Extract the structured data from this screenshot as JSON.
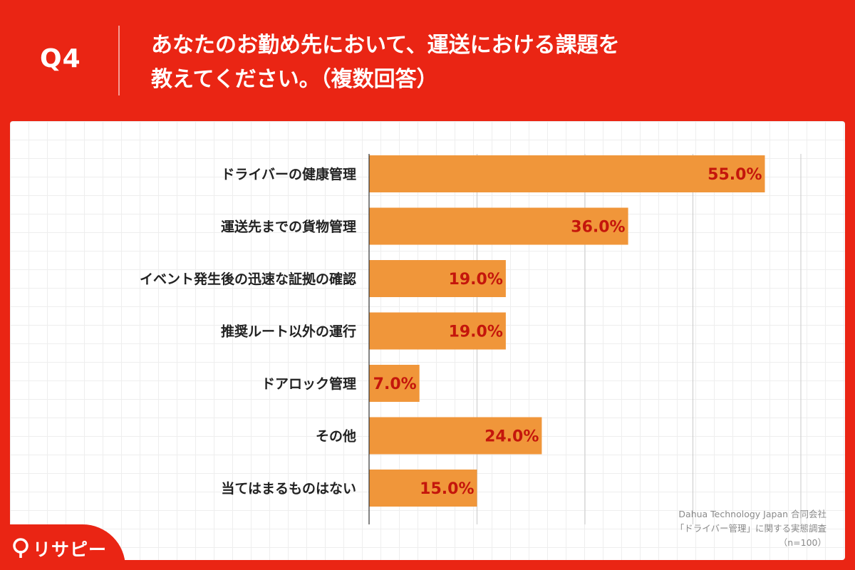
{
  "header": {
    "question_number": "Q4",
    "question_line1": "あなたのお勤め先において、運送における課題を",
    "question_line2": "教えてください。（複数回答）"
  },
  "chart_data": {
    "type": "bar",
    "orientation": "horizontal",
    "categories": [
      "ドライバーの健康管理",
      "運送先までの貨物管理",
      "イベント発生後の迅速な証拠の確認",
      "推奨ルート以外の運行",
      "ドアロック管理",
      "その他",
      "当てはまるものはない"
    ],
    "values": [
      55.0,
      36.0,
      19.0,
      19.0,
      7.0,
      24.0,
      15.0
    ],
    "value_labels": [
      "55.0%",
      "36.0%",
      "19.0%",
      "19.0%",
      "7.0%",
      "24.0%",
      "15.0%"
    ],
    "xlim": [
      0,
      60
    ],
    "grid": true,
    "bar_color": "#f0963a",
    "label_color": "#c4160c"
  },
  "source": {
    "line1": "Dahua Technology Japan 合同会社",
    "line2": "「ドライバー管理」に関する実態調査",
    "line3": "（n=100）"
  },
  "brand": {
    "name": "リサピー",
    "color": "#ea2514"
  }
}
